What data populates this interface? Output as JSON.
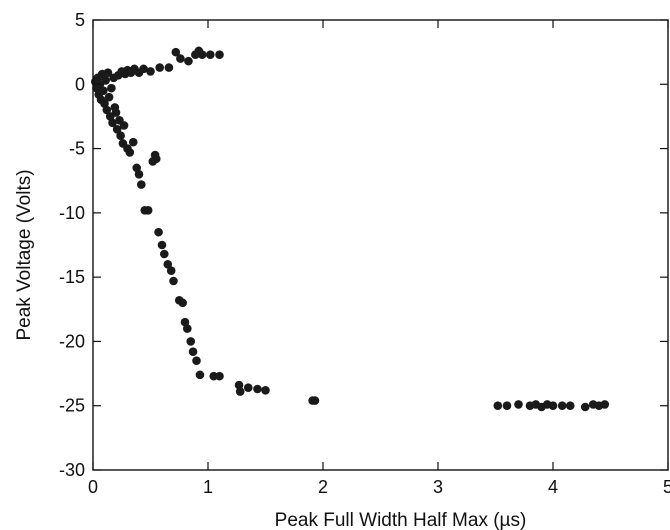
{
  "chart_data": {
    "type": "scatter",
    "title": "",
    "xlabel": "Peak Full Width Half Max (µs)",
    "ylabel": "Peak Voltage (Volts)",
    "xlim": [
      0,
      5
    ],
    "ylim": [
      -30,
      5
    ],
    "x_ticks": [
      0,
      1,
      2,
      3,
      4,
      5
    ],
    "x_tick_labels": [
      "0",
      "1",
      "2",
      "3",
      "4",
      "5"
    ],
    "y_ticks": [
      5,
      0,
      -5,
      -10,
      -15,
      -20,
      -25,
      -30
    ],
    "y_tick_labels": [
      "5",
      "0",
      "-5",
      "-10",
      "-15",
      "-20",
      "-25",
      "-30"
    ],
    "grid": false,
    "legend": "none",
    "marker_color": "#1a1a1a",
    "points": [
      [
        0.02,
        0.2
      ],
      [
        0.03,
        -0.3
      ],
      [
        0.04,
        0.5
      ],
      [
        0.05,
        -0.8
      ],
      [
        0.06,
        0.0
      ],
      [
        0.07,
        -1.2
      ],
      [
        0.08,
        0.8
      ],
      [
        0.09,
        -0.5
      ],
      [
        0.1,
        -1.5
      ],
      [
        0.11,
        0.3
      ],
      [
        0.12,
        -2.0
      ],
      [
        0.13,
        0.9
      ],
      [
        0.14,
        -1.0
      ],
      [
        0.15,
        -2.5
      ],
      [
        0.16,
        -0.3
      ],
      [
        0.17,
        -3.0
      ],
      [
        0.18,
        0.5
      ],
      [
        0.19,
        -1.8
      ],
      [
        0.2,
        -2.2
      ],
      [
        0.21,
        -3.5
      ],
      [
        0.22,
        0.7
      ],
      [
        0.23,
        -2.8
      ],
      [
        0.24,
        -4.0
      ],
      [
        0.25,
        1.0
      ],
      [
        0.26,
        -4.6
      ],
      [
        0.27,
        -3.2
      ],
      [
        0.28,
        0.8
      ],
      [
        0.3,
        -5.0
      ],
      [
        0.3,
        1.1
      ],
      [
        0.32,
        -5.3
      ],
      [
        0.33,
        0.9
      ],
      [
        0.35,
        -4.5
      ],
      [
        0.36,
        1.2
      ],
      [
        0.38,
        -6.5
      ],
      [
        0.4,
        -7.0
      ],
      [
        0.4,
        0.9
      ],
      [
        0.42,
        -7.8
      ],
      [
        0.44,
        1.2
      ],
      [
        0.45,
        -9.8
      ],
      [
        0.48,
        -9.8
      ],
      [
        0.5,
        1.0
      ],
      [
        0.52,
        -6.0
      ],
      [
        0.54,
        -5.5
      ],
      [
        0.55,
        -5.8
      ],
      [
        0.57,
        -11.5
      ],
      [
        0.58,
        1.3
      ],
      [
        0.6,
        -12.5
      ],
      [
        0.62,
        -13.2
      ],
      [
        0.65,
        -14.0
      ],
      [
        0.66,
        1.3
      ],
      [
        0.68,
        -14.5
      ],
      [
        0.7,
        -15.3
      ],
      [
        0.72,
        2.5
      ],
      [
        0.75,
        -16.8
      ],
      [
        0.76,
        2.0
      ],
      [
        0.78,
        -17.0
      ],
      [
        0.8,
        -18.5
      ],
      [
        0.82,
        -19.0
      ],
      [
        0.83,
        1.8
      ],
      [
        0.85,
        -20.0
      ],
      [
        0.87,
        -20.8
      ],
      [
        0.89,
        2.3
      ],
      [
        0.9,
        -21.5
      ],
      [
        0.92,
        2.6
      ],
      [
        0.93,
        -22.6
      ],
      [
        0.95,
        2.3
      ],
      [
        1.02,
        2.3
      ],
      [
        1.05,
        -22.7
      ],
      [
        1.1,
        -22.7
      ],
      [
        1.1,
        2.3
      ],
      [
        1.27,
        -23.4
      ],
      [
        1.28,
        -23.9
      ],
      [
        1.35,
        -23.6
      ],
      [
        1.43,
        -23.7
      ],
      [
        1.5,
        -23.8
      ],
      [
        1.91,
        -24.6
      ],
      [
        1.93,
        -24.6
      ],
      [
        3.52,
        -25.0
      ],
      [
        3.6,
        -25.0
      ],
      [
        3.7,
        -24.9
      ],
      [
        3.8,
        -25.0
      ],
      [
        3.85,
        -24.9
      ],
      [
        3.9,
        -25.1
      ],
      [
        3.95,
        -24.9
      ],
      [
        4.0,
        -25.0
      ],
      [
        4.08,
        -25.0
      ],
      [
        4.15,
        -25.0
      ],
      [
        4.28,
        -25.1
      ],
      [
        4.35,
        -24.9
      ],
      [
        4.4,
        -25.0
      ],
      [
        4.45,
        -24.9
      ]
    ]
  }
}
